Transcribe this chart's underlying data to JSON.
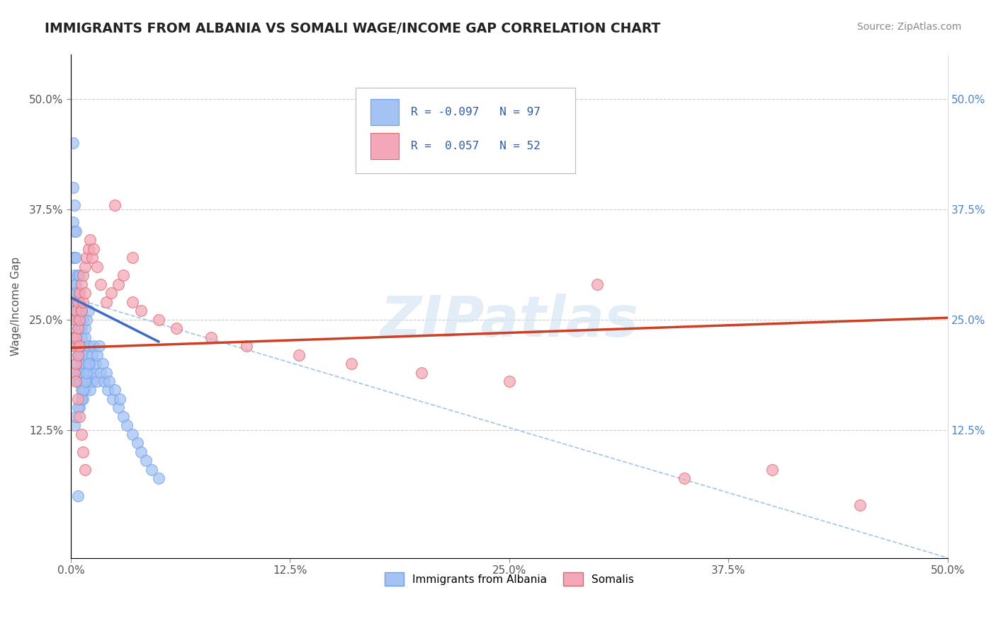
{
  "title": "IMMIGRANTS FROM ALBANIA VS SOMALI WAGE/INCOME GAP CORRELATION CHART",
  "source": "Source: ZipAtlas.com",
  "ylabel": "Wage/Income Gap",
  "xlim": [
    0.0,
    0.5
  ],
  "ylim": [
    -0.02,
    0.55
  ],
  "xtick_labels": [
    "0.0%",
    "12.5%",
    "25.0%",
    "37.5%",
    "50.0%"
  ],
  "xtick_vals": [
    0.0,
    0.125,
    0.25,
    0.375,
    0.5
  ],
  "ytick_labels": [
    "12.5%",
    "25.0%",
    "37.5%",
    "50.0%"
  ],
  "ytick_vals": [
    0.125,
    0.25,
    0.375,
    0.5
  ],
  "right_ytick_labels": [
    "50.0%",
    "37.5%",
    "25.0%",
    "12.5%"
  ],
  "right_ytick_vals": [
    0.5,
    0.375,
    0.25,
    0.125
  ],
  "watermark": "ZIPatlas",
  "legend_r1": "R = -0.097   N = 97",
  "legend_r2": "R =  0.057   N = 52",
  "color_albania": "#a4c2f4",
  "color_somali": "#f4a7b9",
  "color_albania_edge": "#6d9eeb",
  "color_somali_edge": "#e06666",
  "color_albania_line": "#3d6cc0",
  "color_somali_line": "#cc4125",
  "color_dashed_line": "#9fc5e8",
  "albania_scatter_x": [
    0.001,
    0.001,
    0.001,
    0.001,
    0.001,
    0.002,
    0.002,
    0.002,
    0.002,
    0.002,
    0.002,
    0.002,
    0.002,
    0.003,
    0.003,
    0.003,
    0.003,
    0.003,
    0.003,
    0.003,
    0.003,
    0.003,
    0.004,
    0.004,
    0.004,
    0.004,
    0.004,
    0.004,
    0.004,
    0.004,
    0.005,
    0.005,
    0.005,
    0.005,
    0.005,
    0.005,
    0.005,
    0.005,
    0.005,
    0.005,
    0.006,
    0.006,
    0.006,
    0.006,
    0.006,
    0.006,
    0.007,
    0.007,
    0.007,
    0.007,
    0.008,
    0.008,
    0.008,
    0.008,
    0.009,
    0.009,
    0.009,
    0.01,
    0.01,
    0.01,
    0.011,
    0.011,
    0.012,
    0.012,
    0.013,
    0.013,
    0.014,
    0.015,
    0.015,
    0.016,
    0.017,
    0.018,
    0.019,
    0.02,
    0.021,
    0.022,
    0.024,
    0.025,
    0.027,
    0.028,
    0.03,
    0.032,
    0.035,
    0.038,
    0.04,
    0.043,
    0.046,
    0.05,
    0.002,
    0.003,
    0.004,
    0.006,
    0.007,
    0.008,
    0.009,
    0.01,
    0.004
  ],
  "albania_scatter_y": [
    0.45,
    0.4,
    0.36,
    0.32,
    0.28,
    0.38,
    0.35,
    0.32,
    0.29,
    0.26,
    0.23,
    0.3,
    0.27,
    0.35,
    0.32,
    0.29,
    0.26,
    0.23,
    0.2,
    0.28,
    0.25,
    0.22,
    0.3,
    0.27,
    0.24,
    0.21,
    0.18,
    0.25,
    0.22,
    0.19,
    0.3,
    0.27,
    0.24,
    0.21,
    0.18,
    0.15,
    0.28,
    0.25,
    0.22,
    0.19,
    0.26,
    0.23,
    0.2,
    0.17,
    0.24,
    0.21,
    0.25,
    0.22,
    0.19,
    0.16,
    0.23,
    0.2,
    0.17,
    0.24,
    0.21,
    0.18,
    0.25,
    0.22,
    0.19,
    0.26,
    0.2,
    0.17,
    0.21,
    0.18,
    0.22,
    0.19,
    0.2,
    0.21,
    0.18,
    0.22,
    0.19,
    0.2,
    0.18,
    0.19,
    0.17,
    0.18,
    0.16,
    0.17,
    0.15,
    0.16,
    0.14,
    0.13,
    0.12,
    0.11,
    0.1,
    0.09,
    0.08,
    0.07,
    0.13,
    0.14,
    0.15,
    0.16,
    0.17,
    0.18,
    0.19,
    0.2,
    0.05
  ],
  "somali_scatter_x": [
    0.001,
    0.002,
    0.002,
    0.002,
    0.003,
    0.003,
    0.003,
    0.004,
    0.004,
    0.004,
    0.005,
    0.005,
    0.005,
    0.006,
    0.006,
    0.007,
    0.007,
    0.008,
    0.008,
    0.009,
    0.01,
    0.011,
    0.012,
    0.013,
    0.015,
    0.017,
    0.02,
    0.023,
    0.027,
    0.03,
    0.035,
    0.04,
    0.05,
    0.06,
    0.08,
    0.1,
    0.13,
    0.16,
    0.2,
    0.25,
    0.3,
    0.35,
    0.4,
    0.45,
    0.003,
    0.004,
    0.005,
    0.006,
    0.007,
    0.008,
    0.025,
    0.035
  ],
  "somali_scatter_y": [
    0.23,
    0.25,
    0.22,
    0.19,
    0.26,
    0.23,
    0.2,
    0.27,
    0.24,
    0.21,
    0.28,
    0.25,
    0.22,
    0.29,
    0.26,
    0.3,
    0.27,
    0.31,
    0.28,
    0.32,
    0.33,
    0.34,
    0.32,
    0.33,
    0.31,
    0.29,
    0.27,
    0.28,
    0.29,
    0.3,
    0.27,
    0.26,
    0.25,
    0.24,
    0.23,
    0.22,
    0.21,
    0.2,
    0.19,
    0.18,
    0.29,
    0.07,
    0.08,
    0.04,
    0.18,
    0.16,
    0.14,
    0.12,
    0.1,
    0.08,
    0.38,
    0.32
  ],
  "albania_line_x": [
    0.0,
    0.05
  ],
  "albania_line_y": [
    0.275,
    0.225
  ],
  "somali_line_x": [
    0.0,
    0.5
  ],
  "somali_line_y": [
    0.218,
    0.252
  ],
  "dashed_line_x": [
    0.0,
    0.5
  ],
  "dashed_line_y": [
    0.275,
    -0.02
  ]
}
